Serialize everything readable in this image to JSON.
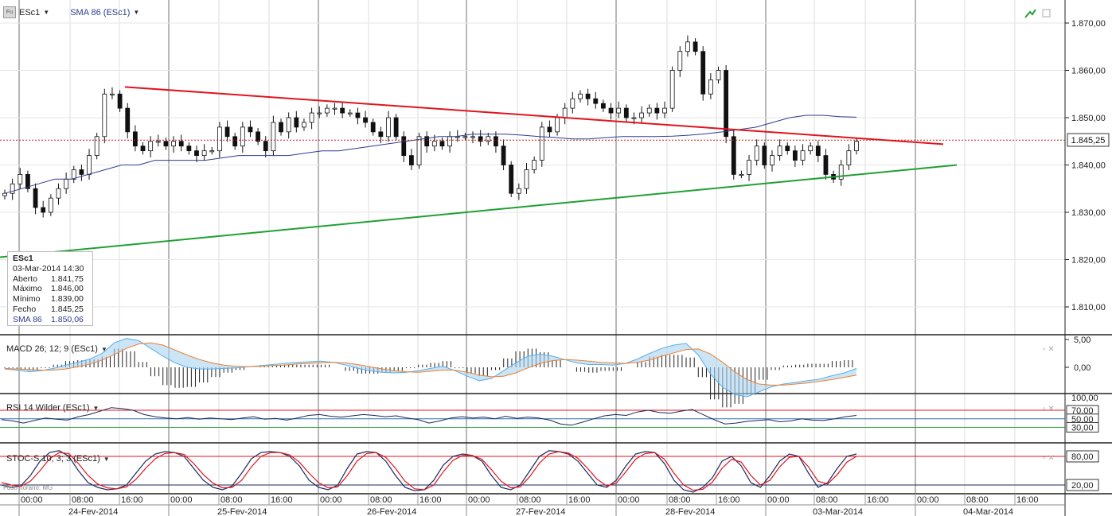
{
  "header": {
    "symbol": "ESc1",
    "indicator": "SMA 86 (ESc1)",
    "fu_icon": "Fu"
  },
  "infobox": {
    "symbol": "ESc1",
    "datetime": "03-Mar-2014 14:30",
    "rows": [
      {
        "label": "Aberto",
        "value": "1.841,75"
      },
      {
        "label": "Máximo",
        "value": "1.846,00"
      },
      {
        "label": "Mínimo",
        "value": "1.839,00"
      },
      {
        "label": "Fecho",
        "value": "1.845,25"
      },
      {
        "label": "SMA 86",
        "value": "1.850,06"
      }
    ]
  },
  "panes": {
    "macd_label": "MACD 26; 12; 9 (ESc1)",
    "rsi_label": "RSI 14 Wilder (ESc1)",
    "stoc_label": "STOC-S 10; 3; 3 (ESc1)"
  },
  "fuso": "Fuso horário: MG",
  "colors": {
    "up_candle": "#ffffff",
    "down_candle": "#111111",
    "sma": "#2b3d8f",
    "resistance": "#e0141e",
    "support": "#1fa033",
    "price_line": "#d01a1a",
    "macd_line": "#5aaee8",
    "signal_line": "#f07f2e",
    "rsi_line": "#1a2a5a",
    "stoc_k": "#1a2a5a",
    "stoc_d": "#e0141e"
  },
  "chart_data": [
    {
      "type": "candlestick",
      "title": "ESc1",
      "ylim": [
        1805,
        1875
      ],
      "y_ticks": [
        "1.870,00",
        "1.860,00",
        "1.850,00",
        "1.840,00",
        "1.830,00",
        "1.820,00",
        "1.810,00"
      ],
      "last_price_label": "1.845,25",
      "x_time_labels": [
        "00:00",
        "08:00",
        "16:00",
        "00:00",
        "08:00",
        "16:00",
        "00:00",
        "08:00",
        "16:00",
        "00:00",
        "08:00",
        "16:00",
        "00:00",
        "08:00",
        "16:00",
        "00:00",
        "08:00",
        "16:00",
        "00:00",
        "08:00",
        "16:00"
      ],
      "x_date_labels": [
        "24-Fev-2014",
        "25-Fev-2014",
        "26-Fev-2014",
        "27-Fev-2014",
        "28-Fev-2014",
        "03-Mar-2014",
        "04-Mar-2014"
      ],
      "close_path": [
        1834,
        1836,
        1838,
        1835,
        1831,
        1830,
        1833,
        1835,
        1837,
        1839,
        1838,
        1842,
        1846,
        1855,
        1855,
        1852,
        1847,
        1844,
        1843,
        1845,
        1845,
        1844,
        1845,
        1844,
        1843,
        1842,
        1843,
        1843,
        1848,
        1846,
        1844,
        1848,
        1847,
        1845,
        1843,
        1849,
        1847,
        1850,
        1848,
        1849,
        1851,
        1851,
        1852,
        1852,
        1851,
        1851,
        1850,
        1849,
        1847,
        1846,
        1850,
        1846,
        1842,
        1840,
        1846,
        1844,
        1845,
        1844,
        1846,
        1846,
        1846,
        1846,
        1845,
        1846,
        1844,
        1840,
        1834,
        1835,
        1839,
        1841,
        1848,
        1847,
        1850,
        1852,
        1854,
        1855,
        1854,
        1853,
        1852,
        1851,
        1852,
        1850,
        1850,
        1851,
        1852,
        1851,
        1852,
        1860,
        1864,
        1866,
        1864,
        1855,
        1858,
        1860,
        1846,
        1838,
        1838,
        1841,
        1844,
        1840,
        1842,
        1844,
        1843,
        1841,
        1843,
        1844,
        1842,
        1838,
        1837,
        1840,
        1843,
        1845
      ],
      "sma_path": [
        1834,
        1835,
        1836,
        1837,
        1837,
        1838,
        1839,
        1840,
        1840,
        1841,
        1841,
        1841,
        1841,
        1841.5,
        1842,
        1842,
        1842,
        1842,
        1842.5,
        1843,
        1843,
        1843.5,
        1844,
        1844.5,
        1845,
        1845.5,
        1846,
        1846,
        1846.5,
        1846.5,
        1846.5,
        1846.3,
        1846,
        1845.8,
        1845.5,
        1845.5,
        1845.8,
        1846,
        1846,
        1846,
        1846.1,
        1846.3,
        1846.6,
        1847,
        1847.5,
        1848,
        1849,
        1850,
        1850.5,
        1850.5,
        1850.2,
        1850.1
      ],
      "resistance": {
        "from": 1856.5,
        "to": 1845
      },
      "support": {
        "from": 1822,
        "to": 1840
      },
      "series": [
        {
          "name": "SMA 86",
          "last": 1850.06
        }
      ]
    },
    {
      "type": "line",
      "title": "MACD 26; 12; 9 (ESc1)",
      "ylim": [
        -6,
        6
      ],
      "y_ticks": [
        "5,00",
        "0,00"
      ],
      "macd": [
        -0.3,
        -0.5,
        -0.8,
        -0.6,
        -0.2,
        0.4,
        0.9,
        1.5,
        2.5,
        4.4,
        5.2,
        4.8,
        3.4,
        2.0,
        0.8,
        0.0,
        -0.3,
        -0.3,
        -0.2,
        -0.1,
        0.1,
        0.3,
        0.5,
        0.7,
        0.9,
        1.0,
        1.1,
        0.9,
        0.4,
        -0.2,
        -0.6,
        -0.9,
        -1.0,
        -0.9,
        -0.6,
        -0.2,
        0.2,
        -0.6,
        -1.6,
        -2.4,
        -2.0,
        -0.6,
        0.8,
        2.0,
        2.4,
        2.0,
        1.4,
        0.8,
        0.5,
        0.5,
        0.4,
        0.7,
        1.5,
        2.5,
        3.4,
        4.0,
        4.3,
        2.2,
        -1.2,
        -3.6,
        -4.9,
        -5.3,
        -4.4,
        -3.5,
        -3.0,
        -2.7,
        -2.4,
        -2.1,
        -1.5,
        -1.0,
        -0.2
      ],
      "signal": [
        -0.2,
        -0.3,
        -0.4,
        -0.5,
        -0.5,
        -0.3,
        0.1,
        0.6,
        1.3,
        2.3,
        3.4,
        4.2,
        4.4,
        4.0,
        3.1,
        2.2,
        1.4,
        0.8,
        0.4,
        0.2,
        0.1,
        0.2,
        0.3,
        0.4,
        0.6,
        0.7,
        0.8,
        0.9,
        0.8,
        0.5,
        0.1,
        -0.3,
        -0.6,
        -0.8,
        -0.9,
        -0.7,
        -0.5,
        -0.5,
        -0.9,
        -1.4,
        -1.7,
        -1.6,
        -1.0,
        -0.1,
        0.7,
        1.2,
        1.4,
        1.3,
        1.1,
        0.9,
        0.8,
        0.7,
        0.9,
        1.3,
        2.0,
        2.6,
        3.2,
        3.3,
        2.4,
        0.9,
        -0.8,
        -2.2,
        -3.0,
        -3.2,
        -3.2,
        -3.0,
        -2.8,
        -2.5,
        -2.2,
        -1.8,
        -1.4
      ]
    },
    {
      "type": "line",
      "title": "RSI 14 Wilder (ESc1)",
      "ylim": [
        0,
        100
      ],
      "y_ticks": [
        "100,00",
        "70,00",
        "50,00",
        "30,00"
      ],
      "levels": [
        70,
        50,
        30
      ],
      "rsi": [
        48,
        45,
        40,
        46,
        52,
        49,
        47,
        55,
        60,
        68,
        76,
        74,
        70,
        60,
        55,
        52,
        50,
        53,
        49,
        52,
        50,
        48,
        52,
        55,
        49,
        51,
        47,
        52,
        58,
        60,
        56,
        54,
        57,
        60,
        58,
        55,
        57,
        52,
        48,
        40,
        45,
        52,
        55,
        52,
        54,
        50,
        56,
        51,
        54,
        52,
        47,
        38,
        35,
        42,
        50,
        57,
        60,
        58,
        66,
        70,
        65,
        63,
        68,
        72,
        60,
        48,
        38,
        40,
        44,
        46,
        48,
        43,
        45,
        50,
        47,
        46,
        50,
        55,
        58
      ]
    },
    {
      "type": "line",
      "title": "STOC-S 10; 3; 3 (ESc1)",
      "ylim": [
        0,
        100
      ],
      "y_ticks": [
        "80,00",
        "20,00"
      ],
      "levels": [
        80,
        20
      ],
      "k": [
        20,
        15,
        18,
        40,
        70,
        88,
        92,
        80,
        50,
        25,
        15,
        10,
        12,
        20,
        45,
        70,
        85,
        90,
        88,
        80,
        55,
        30,
        15,
        10,
        18,
        45,
        75,
        88,
        90,
        88,
        80,
        60,
        30,
        15,
        10,
        20,
        55,
        85,
        90,
        88,
        70,
        40,
        15,
        8,
        10,
        30,
        62,
        80,
        85,
        82,
        70,
        40,
        15,
        10,
        20,
        50,
        80,
        92,
        90,
        85,
        70,
        45,
        20,
        15,
        30,
        60,
        85,
        90,
        88,
        65,
        30,
        10,
        5,
        15,
        35,
        70,
        80,
        60,
        25,
        15,
        40,
        70,
        85,
        80,
        45,
        15,
        25,
        55,
        80,
        85
      ],
      "d": [
        25,
        20,
        17,
        28,
        50,
        75,
        88,
        86,
        65,
        40,
        22,
        14,
        12,
        16,
        32,
        55,
        75,
        86,
        88,
        84,
        65,
        42,
        24,
        14,
        15,
        30,
        58,
        80,
        88,
        88,
        83,
        68,
        45,
        25,
        14,
        16,
        40,
        70,
        86,
        88,
        78,
        55,
        28,
        12,
        10,
        20,
        48,
        72,
        82,
        82,
        74,
        52,
        28,
        14,
        16,
        38,
        66,
        85,
        90,
        87,
        76,
        55,
        32,
        18,
        24,
        48,
        74,
        86,
        88,
        74,
        45,
        20,
        9,
        11,
        26,
        55,
        74,
        68,
        40,
        20,
        30,
        58,
        78,
        80,
        58,
        28,
        22,
        42,
        68,
        80
      ]
    }
  ]
}
